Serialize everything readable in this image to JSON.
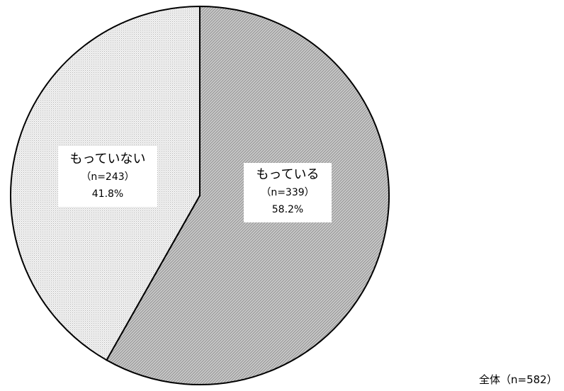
{
  "chart_data": {
    "type": "pie",
    "title": "",
    "start_angle_deg": 0,
    "direction": "clockwise",
    "slices": [
      {
        "name": "もっている",
        "count_label": "（n=339）",
        "percent_label": "58.2%",
        "value": 58.2,
        "n": 339,
        "fill": "#c4c4c4",
        "pattern": "diagonal-hatch"
      },
      {
        "name": "もっていない",
        "count_label": "（n=243）",
        "percent_label": "41.8%",
        "value": 41.8,
        "n": 243,
        "fill": "#ececec",
        "pattern": "dots"
      }
    ],
    "total_note": "全体（n=582）",
    "edge_color": "#000000"
  }
}
